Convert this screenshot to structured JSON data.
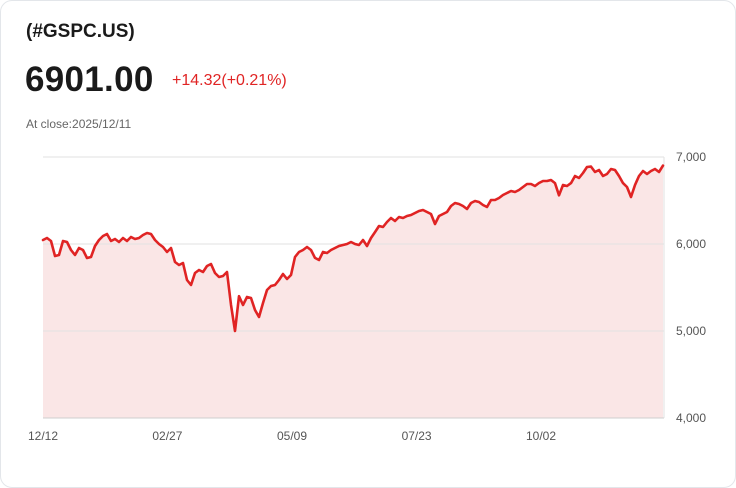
{
  "header": {
    "symbol": "(#GSPC.US)",
    "price": "6901.00",
    "change": "+14.32(+0.21%)",
    "close_label": "At close:2025/12/11"
  },
  "colors": {
    "line": "#e02424",
    "fill": "#fae6e6",
    "grid": "#e2e2e2",
    "change": "#e02424"
  },
  "chart_data": {
    "type": "area",
    "title": "(#GSPC.US)",
    "xlabel": "",
    "ylabel": "",
    "ylim": [
      4000,
      7000
    ],
    "xlim": [
      0,
      155
    ],
    "grid": true,
    "y_ticks": [
      {
        "value": 7000,
        "label": "7,000"
      },
      {
        "value": 6000,
        "label": "6,000"
      },
      {
        "value": 5000,
        "label": "5,000"
      },
      {
        "value": 4000,
        "label": "4,000"
      }
    ],
    "x_ticks": [
      {
        "at": 0,
        "label": "12/12"
      },
      {
        "at": 31.1,
        "label": "02/27"
      },
      {
        "at": 62.25,
        "label": "05/09"
      },
      {
        "at": 93.4,
        "label": "07/23"
      },
      {
        "at": 124.5,
        "label": "10/02"
      }
    ],
    "values": [
      6046,
      6069,
      6034,
      5862,
      5874,
      6034,
      6023,
      5931,
      5874,
      5954,
      5931,
      5839,
      5851,
      5977,
      6046,
      6092,
      6115,
      6034,
      6057,
      6023,
      6069,
      6034,
      6080,
      6057,
      6069,
      6103,
      6126,
      6115,
      6046,
      6000,
      5966,
      5908,
      5954,
      5793,
      5759,
      5782,
      5586,
      5529,
      5667,
      5701,
      5678,
      5747,
      5770,
      5667,
      5621,
      5632,
      5678,
      5300,
      5000,
      5400,
      5299,
      5391,
      5379,
      5241,
      5161,
      5322,
      5471,
      5517,
      5529,
      5586,
      5655,
      5598,
      5644,
      5850,
      5908,
      5931,
      5966,
      5931,
      5840,
      5816,
      5908,
      5897,
      5931,
      5954,
      5977,
      5989,
      6000,
      6023,
      6000,
      5989,
      6046,
      5977,
      6069,
      6137,
      6207,
      6195,
      6253,
      6299,
      6264,
      6310,
      6299,
      6322,
      6333,
      6356,
      6379,
      6391,
      6368,
      6345,
      6230,
      6322,
      6345,
      6368,
      6437,
      6471,
      6460,
      6437,
      6402,
      6471,
      6494,
      6483,
      6448,
      6425,
      6506,
      6506,
      6529,
      6563,
      6586,
      6609,
      6598,
      6621,
      6655,
      6690,
      6690,
      6667,
      6701,
      6724,
      6724,
      6736,
      6700,
      6560,
      6678,
      6667,
      6700,
      6782,
      6759,
      6816,
      6885,
      6890,
      6828,
      6851,
      6782,
      6805,
      6862,
      6851,
      6782,
      6700,
      6655,
      6540,
      6678,
      6782,
      6839,
      6805,
      6839,
      6862,
      6828,
      6901
    ]
  }
}
